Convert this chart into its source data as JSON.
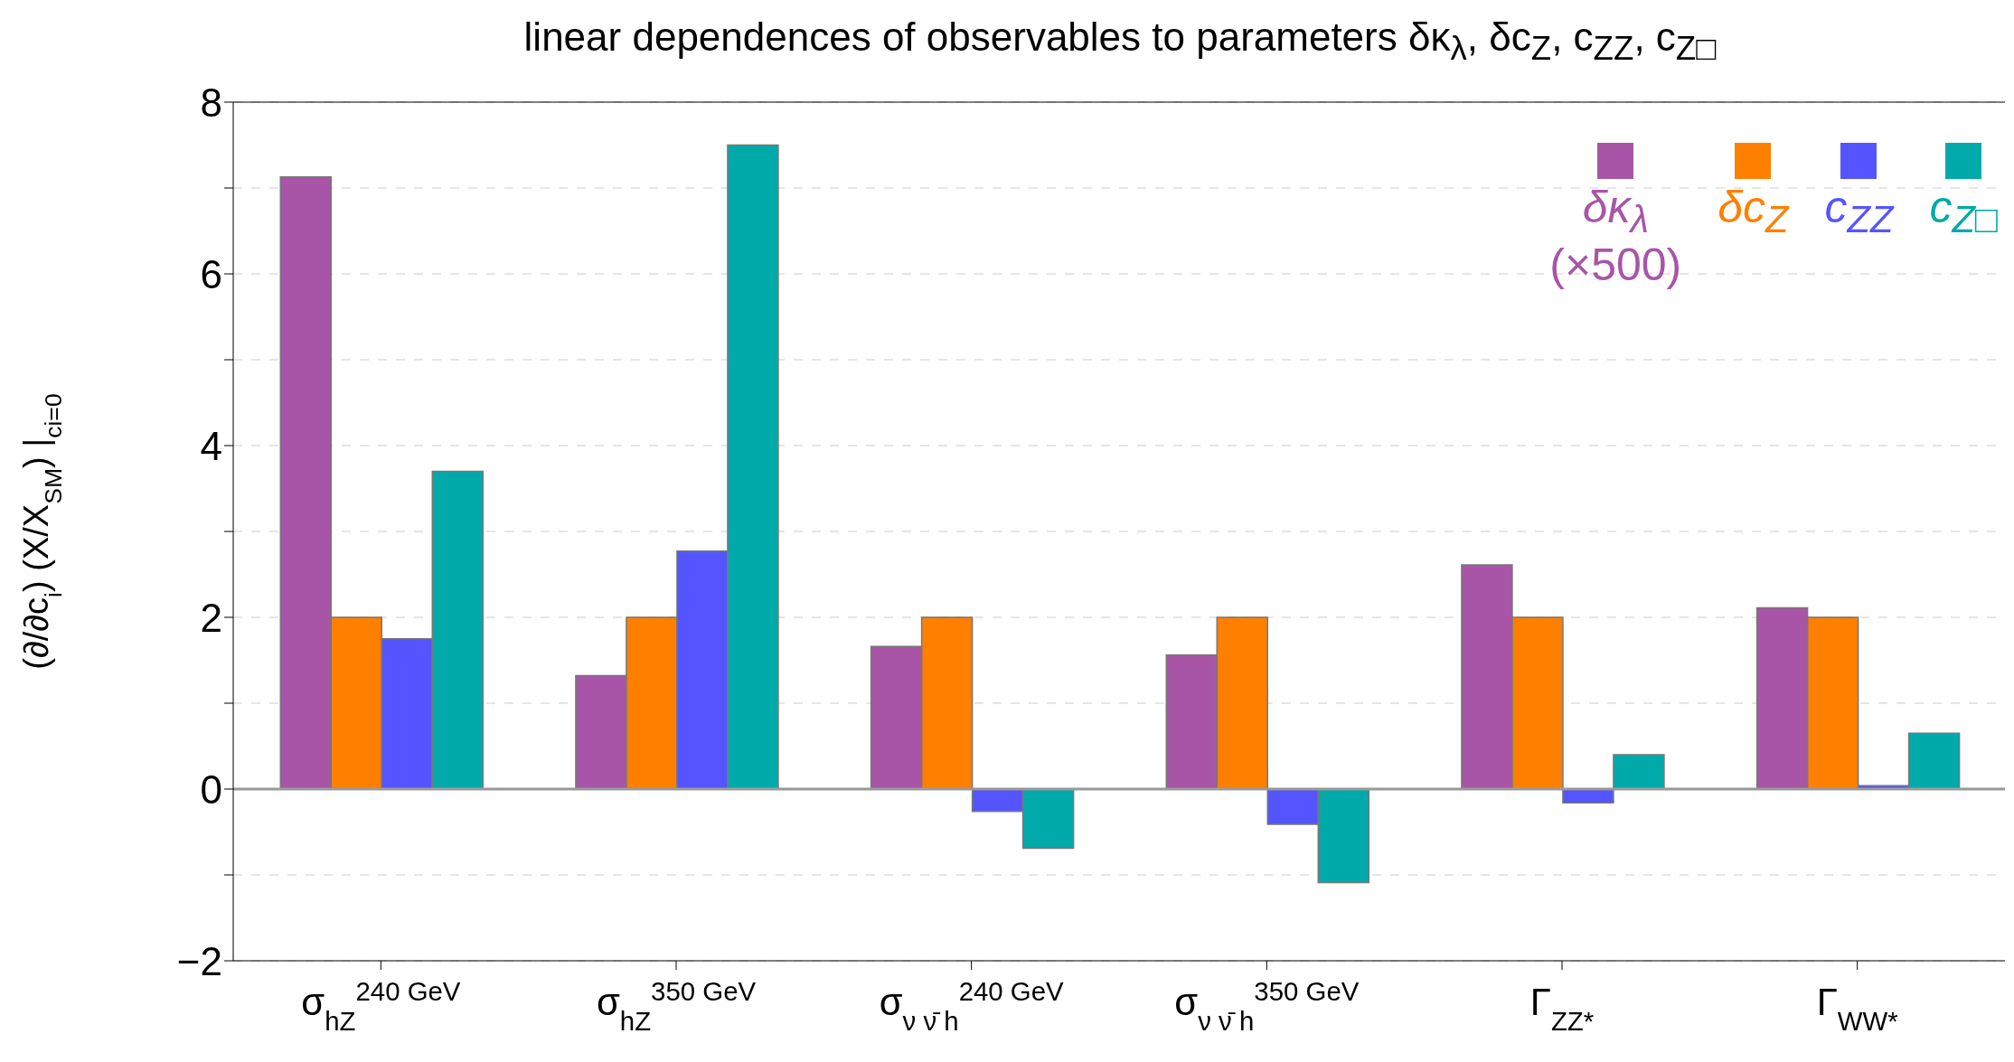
{
  "chart_data": {
    "type": "bar",
    "title": "linear dependences of observables to parameters δκ$_{λ}$, δc$_{Z}$, c$_{ZZ}$, c$_{Z□}$",
    "ylabel": "(∂/∂c$_{i}$) (X/X$_{SM}$) |$_{ci=0}$",
    "categories": [
      "σ$_{hZ}$$^{240 GeV}$",
      "σ$_{hZ}$$^{350 GeV}$",
      "σ$_{ν ν̄ h}$$^{240 GeV}$",
      "σ$_{ν ν̄ h}$$^{350 GeV}$",
      "Γ$_{ZZ*}$",
      "Γ$_{WW*}$"
    ],
    "series": [
      {
        "name": "δκ$_{λ}$ (×500)",
        "color": "#a855a8",
        "values": [
          7.13,
          1.32,
          1.66,
          1.56,
          2.61,
          2.11
        ]
      },
      {
        "name": "δc$_{Z}$",
        "color": "#ff7f00",
        "values": [
          2,
          2,
          2,
          2,
          2,
          2
        ]
      },
      {
        "name": "c$_{ZZ}$",
        "color": "#5555ff",
        "values": [
          1.75,
          2.77,
          -0.26,
          -0.41,
          -0.16,
          0.04
        ]
      },
      {
        "name": "c$_{Z□}$",
        "color": "#00aaaa",
        "values": [
          3.7,
          7.5,
          -0.69,
          -1.09,
          0.4,
          0.65
        ]
      }
    ],
    "ylim": [
      -2,
      8
    ],
    "yticks": [
      -2,
      {
        "value": -1,
        "label": null
      },
      0,
      {
        "value": 1,
        "label": null
      },
      2,
      {
        "value": 3,
        "label": null
      },
      4,
      {
        "value": 5,
        "label": null
      },
      6,
      {
        "value": 7,
        "label": null
      },
      8
    ],
    "grid": "y",
    "legend": "top right",
    "ref_lines": [
      {
        "axis": "y",
        "value": 0,
        "color": "#999999"
      }
    ]
  }
}
